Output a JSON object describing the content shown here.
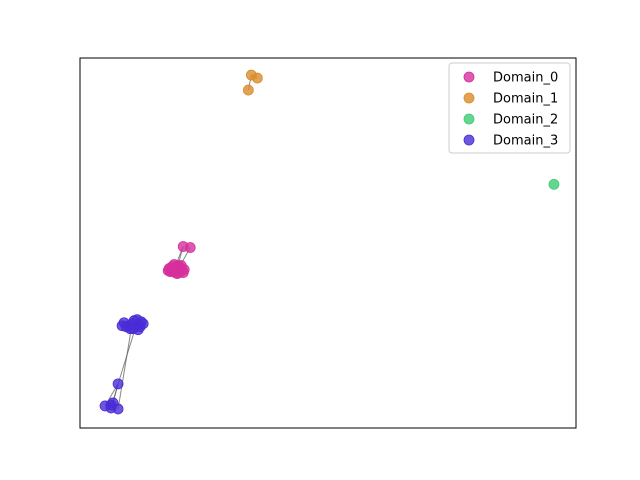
{
  "chart_data": {
    "type": "scatter",
    "title": "",
    "xlabel": "",
    "ylabel": "",
    "axes_visible_ticks": false,
    "grid": false,
    "legend_placement": "top-right",
    "xlim": [
      0,
      495
    ],
    "ylim": [
      0,
      369
    ],
    "series": [
      {
        "name": "Domain_0",
        "color": "#d62f9d",
        "points": [
          [
            103,
            181
          ],
          [
            110,
            180
          ],
          [
            97,
            160
          ],
          [
            93,
            159
          ],
          [
            100,
            160
          ],
          [
            91,
            157
          ],
          [
            96,
            157
          ],
          [
            102,
            157
          ],
          [
            89,
            159
          ],
          [
            95,
            155
          ],
          [
            90,
            156
          ],
          [
            98,
            162
          ],
          [
            104,
            158
          ],
          [
            92,
            161
          ],
          [
            99,
            155
          ],
          [
            88,
            157
          ],
          [
            101,
            162
          ],
          [
            94,
            163
          ],
          [
            97,
            154
          ],
          [
            103,
            155
          ]
        ]
      },
      {
        "name": "Domain_1",
        "color": "#d98c2b",
        "points": [
          [
            171,
            352
          ],
          [
            177,
            349
          ],
          [
            168,
            337
          ]
        ]
      },
      {
        "name": "Domain_2",
        "color": "#3dcc74",
        "points": [
          [
            473,
            243
          ]
        ]
      },
      {
        "name": "Domain_3",
        "color": "#4a2dd6",
        "points": [
          [
            56,
            102
          ],
          [
            52,
            104
          ],
          [
            60,
            101
          ],
          [
            48,
            102
          ],
          [
            54,
            107
          ],
          [
            44,
            105
          ],
          [
            63,
            104
          ],
          [
            50,
            99
          ],
          [
            58,
            98
          ],
          [
            46,
            101
          ],
          [
            53,
            99
          ],
          [
            61,
            106
          ],
          [
            42,
            102
          ],
          [
            57,
            108
          ],
          [
            38,
            44
          ],
          [
            25,
            22
          ],
          [
            31,
            20
          ],
          [
            38,
            19
          ],
          [
            31,
            23
          ],
          [
            33,
            25
          ]
        ]
      }
    ],
    "edges": [
      [
        [
          103,
          181
        ],
        [
          97,
          160
        ]
      ],
      [
        [
          110,
          180
        ],
        [
          99,
          160
        ]
      ],
      [
        [
          103,
          181
        ],
        [
          95,
          161
        ]
      ],
      [
        [
          171,
          352
        ],
        [
          177,
          349
        ]
      ],
      [
        [
          171,
          352
        ],
        [
          168,
          337
        ]
      ],
      [
        [
          56,
          102
        ],
        [
          38,
          44
        ]
      ],
      [
        [
          38,
          44
        ],
        [
          25,
          22
        ]
      ],
      [
        [
          38,
          44
        ],
        [
          31,
          20
        ]
      ],
      [
        [
          38,
          44
        ],
        [
          33,
          25
        ]
      ],
      [
        [
          52,
          104
        ],
        [
          38,
          19
        ]
      ]
    ]
  }
}
